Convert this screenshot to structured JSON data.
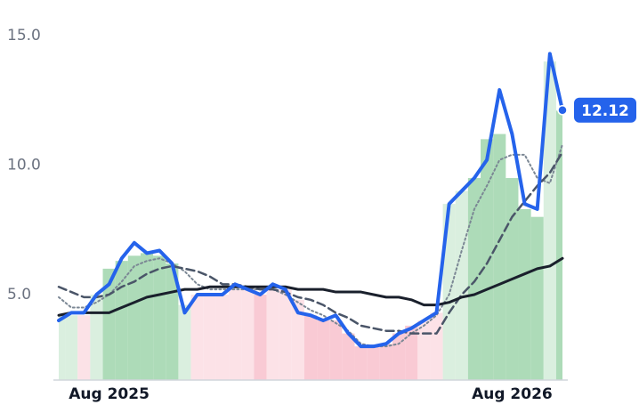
{
  "chart_data": {
    "type": "line",
    "categories": [
      null,
      null,
      null,
      null,
      "Aug 2025",
      null,
      null,
      null,
      null,
      null,
      null,
      null,
      null,
      null,
      null,
      null,
      null,
      null,
      null,
      null,
      null,
      null,
      null,
      null,
      null,
      null,
      null,
      null,
      null,
      null,
      null,
      null,
      null,
      null,
      null,
      null,
      "Aug 2026",
      null,
      null,
      null,
      null
    ],
    "ylim": [
      1.7,
      15.7
    ],
    "yticks": [
      {
        "value": 5,
        "label": "5.0"
      },
      {
        "value": 10,
        "label": "10.0"
      },
      {
        "value": 15,
        "label": "15.0"
      }
    ],
    "series": [
      {
        "color": "#2563eb",
        "style": "solid",
        "width": 4,
        "values": [
          4.0,
          4.3,
          4.3,
          5.0,
          5.4,
          6.4,
          7.0,
          6.6,
          6.7,
          6.2,
          4.3,
          5.0,
          5.0,
          5.0,
          5.4,
          5.2,
          5.0,
          5.4,
          5.2,
          4.3,
          4.2,
          4.0,
          4.2,
          3.5,
          3.0,
          3.0,
          3.1,
          3.5,
          3.7,
          4.0,
          4.3,
          8.5,
          9.0,
          9.5,
          10.2,
          12.9,
          11.2,
          8.5,
          8.3,
          14.3,
          12.12
        ]
      },
      {
        "color": "#7b8794",
        "style": "dotted",
        "width": 2,
        "values": [
          4.9,
          4.5,
          4.5,
          4.7,
          5.0,
          5.5,
          6.1,
          6.3,
          6.4,
          6.2,
          5.9,
          5.4,
          5.2,
          5.2,
          5.2,
          5.2,
          5.2,
          5.2,
          5.0,
          4.7,
          4.4,
          4.2,
          3.9,
          3.6,
          3.1,
          3.0,
          3.0,
          3.1,
          3.5,
          3.8,
          4.2,
          5.0,
          6.7,
          8.3,
          9.2,
          10.2,
          10.4,
          10.4,
          9.5,
          9.3,
          10.8
        ]
      },
      {
        "color": "#4a5568",
        "style": "dashed",
        "width": 2.5,
        "values": [
          5.3,
          5.1,
          4.9,
          4.9,
          5.0,
          5.3,
          5.5,
          5.8,
          6.0,
          6.1,
          6.0,
          5.9,
          5.7,
          5.4,
          5.4,
          5.3,
          5.2,
          5.2,
          5.1,
          4.9,
          4.8,
          4.6,
          4.3,
          4.1,
          3.8,
          3.7,
          3.6,
          3.6,
          3.5,
          3.5,
          3.5,
          4.3,
          5.0,
          5.5,
          6.2,
          7.1,
          8.0,
          8.6,
          9.2,
          9.7,
          10.5
        ]
      },
      {
        "color": "#1a202c",
        "style": "solid",
        "width": 3,
        "values": [
          4.2,
          4.3,
          4.3,
          4.3,
          4.3,
          4.5,
          4.7,
          4.9,
          5.0,
          5.1,
          5.2,
          5.2,
          5.3,
          5.3,
          5.3,
          5.3,
          5.3,
          5.3,
          5.3,
          5.2,
          5.2,
          5.2,
          5.1,
          5.1,
          5.1,
          5.0,
          4.9,
          4.9,
          4.8,
          4.6,
          4.6,
          4.7,
          4.9,
          5.0,
          5.2,
          5.4,
          5.6,
          5.8,
          6.0,
          6.1,
          6.4
        ]
      }
    ],
    "bars": {
      "values": [
        4.2,
        4.2,
        4.2,
        5.0,
        6.0,
        6.3,
        6.5,
        6.6,
        6.5,
        6.2,
        4.6,
        5.0,
        5.0,
        5.0,
        5.2,
        5.2,
        5.0,
        5.2,
        5.2,
        4.8,
        4.2,
        4.0,
        4.0,
        3.5,
        3.0,
        3.0,
        3.1,
        3.5,
        3.8,
        4.0,
        4.3,
        8.5,
        9.0,
        9.5,
        11.0,
        11.2,
        9.5,
        8.3,
        8.0,
        14.0,
        12.1
      ],
      "colors": [
        "#d4ecd9",
        "#d4ecd9",
        "#fcdde3",
        "#d4ecd9",
        "#9fd5ac",
        "#9fd5ac",
        "#9fd5ac",
        "#9fd5ac",
        "#9fd5ac",
        "#9fd5ac",
        "#d4ecd9",
        "#fcdde3",
        "#fcdde3",
        "#fcdde3",
        "#fcdde3",
        "#fcdde3",
        "#f8c1cc",
        "#fcdde3",
        "#fcdde3",
        "#fcdde3",
        "#f8c1cc",
        "#f8c1cc",
        "#f8c1cc",
        "#f8c1cc",
        "#f8c1cc",
        "#f8c1cc",
        "#f8c1cc",
        "#f8c1cc",
        "#f8c1cc",
        "#fcdde3",
        "#fcdde3",
        "#d4ecd9",
        "#d4ecd9",
        "#9fd5ac",
        "#9fd5ac",
        "#9fd5ac",
        "#9fd5ac",
        "#9fd5ac",
        "#9fd5ac",
        "#d4ecd9",
        "#9fd5ac"
      ]
    }
  }
}
